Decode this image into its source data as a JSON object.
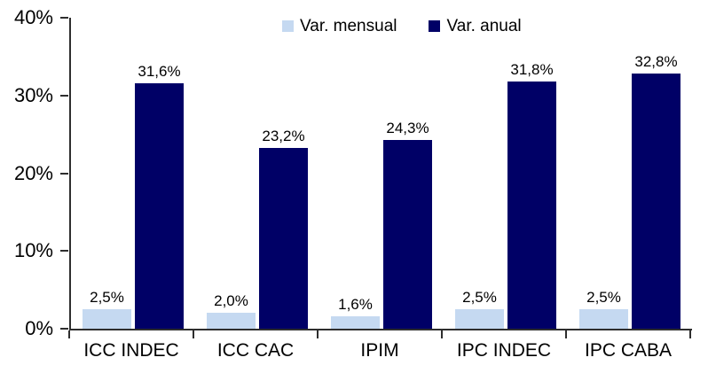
{
  "chart_data": {
    "type": "bar",
    "title": "",
    "xlabel": "",
    "ylabel": "",
    "categories": [
      "ICC INDEC",
      "ICC CAC",
      "IPIM",
      "IPC INDEC",
      "IPC CABA"
    ],
    "series": [
      {
        "name": "Var. mensual",
        "color": "#c5d9f1",
        "values": [
          2.5,
          2.0,
          1.6,
          2.5,
          2.5
        ],
        "labels": [
          "2,5%",
          "2,0%",
          "1,6%",
          "2,5%",
          "2,5%"
        ]
      },
      {
        "name": "Var. anual",
        "color": "#000066",
        "values": [
          31.6,
          23.2,
          24.3,
          31.8,
          32.8
        ],
        "labels": [
          "31,6%",
          "23,2%",
          "24,3%",
          "31,8%",
          "32,8%"
        ]
      }
    ],
    "ylim": [
      0,
      40
    ],
    "yticks": [
      {
        "value": 0,
        "label": "0%"
      },
      {
        "value": 10,
        "label": "10%"
      },
      {
        "value": 20,
        "label": "20%"
      },
      {
        "value": 30,
        "label": "30%"
      },
      {
        "value": 40,
        "label": "40%"
      }
    ],
    "grid": false,
    "legend_position": "top-center",
    "axis_color": "#2e2e2e",
    "text_color": "#000000",
    "background_color": "#ffffff"
  }
}
